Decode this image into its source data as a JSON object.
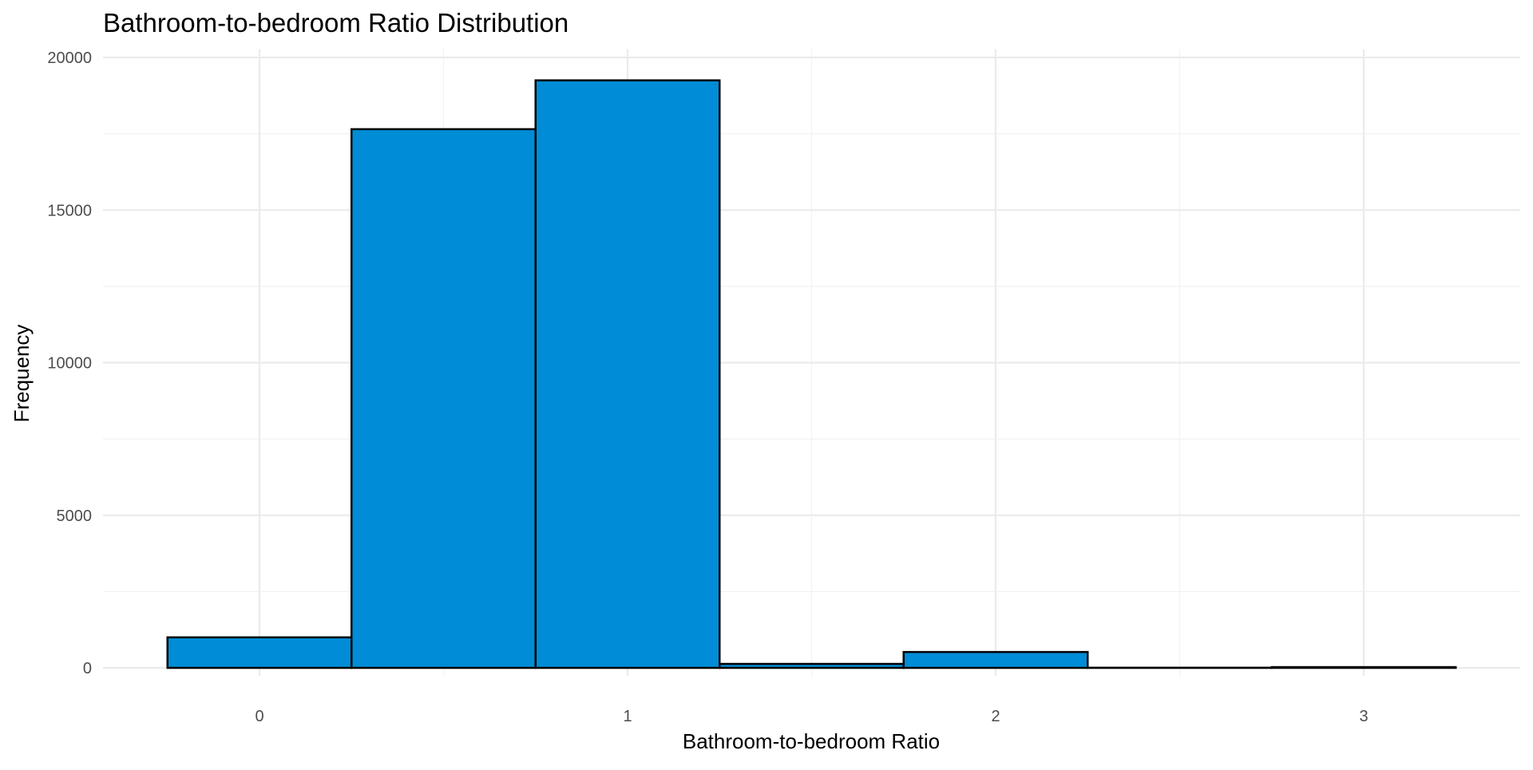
{
  "chart_data": {
    "type": "bar",
    "title": "Bathroom-to-bedroom Ratio Distribution",
    "xlabel": "Bathroom-to-bedroom Ratio",
    "ylabel": "Frequency",
    "bin_width": 0.5,
    "bins": [
      {
        "x0": -0.25,
        "x1": 0.25,
        "count": 1000
      },
      {
        "x0": 0.25,
        "x1": 0.75,
        "count": 17650
      },
      {
        "x0": 0.75,
        "x1": 1.25,
        "count": 19250
      },
      {
        "x0": 1.25,
        "x1": 1.75,
        "count": 130
      },
      {
        "x0": 1.75,
        "x1": 2.25,
        "count": 520
      },
      {
        "x0": 2.25,
        "x1": 2.75,
        "count": 5
      },
      {
        "x0": 2.75,
        "x1": 3.25,
        "count": 25
      }
    ],
    "x_ticks": [
      0,
      1,
      2,
      3
    ],
    "x_tick_labels": [
      "0",
      "1",
      "2",
      "3"
    ],
    "y_ticks": [
      0,
      5000,
      10000,
      15000,
      20000
    ],
    "y_tick_labels": [
      "0",
      "5000",
      "10000",
      "15000",
      "20000"
    ],
    "xlim": [
      -0.42,
      3.42
    ],
    "ylim": [
      0,
      20200
    ],
    "grid": true,
    "legend": "none",
    "bar_fill": "#008CD6",
    "bar_outline": "#000000"
  }
}
